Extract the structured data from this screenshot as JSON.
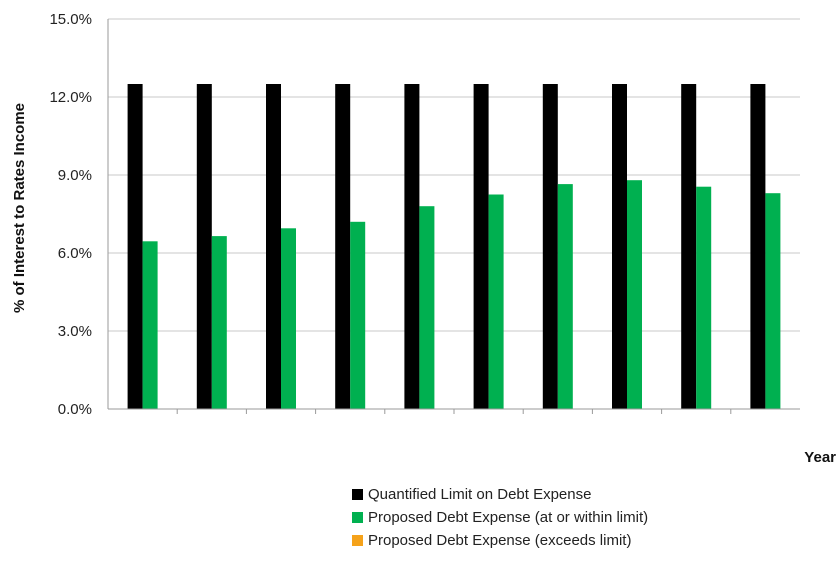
{
  "chart_data": {
    "type": "bar",
    "xlabel": "Year",
    "ylabel": "% of Interest to Rates Income",
    "ylim": [
      0,
      15
    ],
    "yticks": [
      0,
      3,
      6,
      9,
      12,
      15
    ],
    "ytick_labels": [
      "0.0%",
      "3.0%",
      "6.0%",
      "9.0%",
      "12.0%",
      "15.0%"
    ],
    "categories": [
      "",
      "",
      "",
      "",
      "",
      "",
      "",
      "",
      "",
      ""
    ],
    "grid": true,
    "legend_position": "bottom",
    "series": [
      {
        "name": "Quantified Limit on Debt Expense",
        "color": "#000000",
        "values": [
          12.5,
          12.5,
          12.5,
          12.5,
          12.5,
          12.5,
          12.5,
          12.5,
          12.5,
          12.5
        ]
      },
      {
        "name": "Proposed Debt Expense (at or within limit)",
        "color": "#00b050",
        "values": [
          6.45,
          6.65,
          6.95,
          7.2,
          7.8,
          8.25,
          8.65,
          8.8,
          8.55,
          8.3
        ]
      },
      {
        "name": "Proposed Debt Expense (exceeds limit)",
        "color": "#f5a21a",
        "values": [
          0,
          0,
          0,
          0,
          0,
          0,
          0,
          0,
          0,
          0
        ]
      }
    ]
  }
}
